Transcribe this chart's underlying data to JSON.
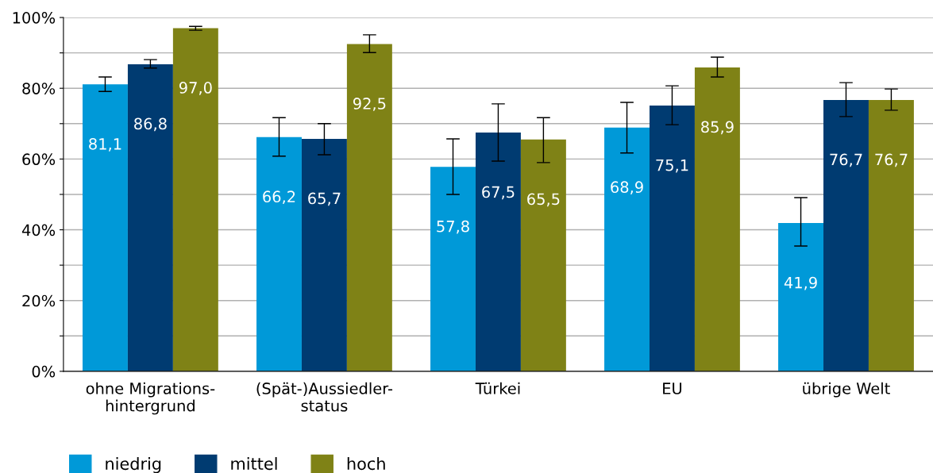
{
  "chart_data": {
    "type": "bar",
    "categories": [
      "ohne Migrations-\nhintergrund",
      "(Spät-)Aussiedler-\nstatus",
      "Türkei",
      "EU",
      "übrige Welt"
    ],
    "series": [
      {
        "name": "niedrig",
        "color": "#0099d8",
        "values": [
          81.1,
          66.2,
          57.8,
          68.9,
          41.9
        ],
        "value_labels": [
          "81,1",
          "66,2",
          "57,8",
          "68,9",
          "41,9"
        ],
        "errors": [
          [
            79.1,
            83.2
          ],
          [
            60.8,
            71.7
          ],
          [
            50.0,
            65.7
          ],
          [
            61.7,
            76.0
          ],
          [
            35.4,
            49.1
          ]
        ]
      },
      {
        "name": "mittel",
        "color": "#003b71",
        "values": [
          86.8,
          65.7,
          67.5,
          75.1,
          76.7
        ],
        "value_labels": [
          "86,8",
          "65,7",
          "67,5",
          "75,1",
          "76,7"
        ],
        "errors": [
          [
            85.7,
            88.1
          ],
          [
            61.2,
            70.0
          ],
          [
            59.4,
            75.6
          ],
          [
            69.7,
            80.7
          ],
          [
            72.0,
            81.6
          ]
        ]
      },
      {
        "name": "hoch",
        "color": "#7f8216",
        "values": [
          97.0,
          92.5,
          65.5,
          85.9,
          76.7
        ],
        "value_labels": [
          "97,0",
          "92,5",
          "65,5",
          "85,9",
          "76,7"
        ],
        "errors": [
          [
            96.4,
            97.5
          ],
          [
            90.1,
            95.1
          ],
          [
            59.0,
            71.7
          ],
          [
            83.2,
            88.8
          ],
          [
            73.8,
            79.8
          ]
        ]
      }
    ],
    "ylim": [
      0,
      100
    ],
    "yticks": [
      {
        "value": 0,
        "label": "0%"
      },
      {
        "value": 10,
        "label": null
      },
      {
        "value": 20,
        "label": "20%"
      },
      {
        "value": 30,
        "label": null
      },
      {
        "value": 40,
        "label": "40%"
      },
      {
        "value": 50,
        "label": null
      },
      {
        "value": 60,
        "label": "60%"
      },
      {
        "value": 70,
        "label": null
      },
      {
        "value": 80,
        "label": "80%"
      },
      {
        "value": 90,
        "label": null
      },
      {
        "value": 100,
        "label": "100%"
      }
    ],
    "grid": "y",
    "legend": "bottom left"
  }
}
